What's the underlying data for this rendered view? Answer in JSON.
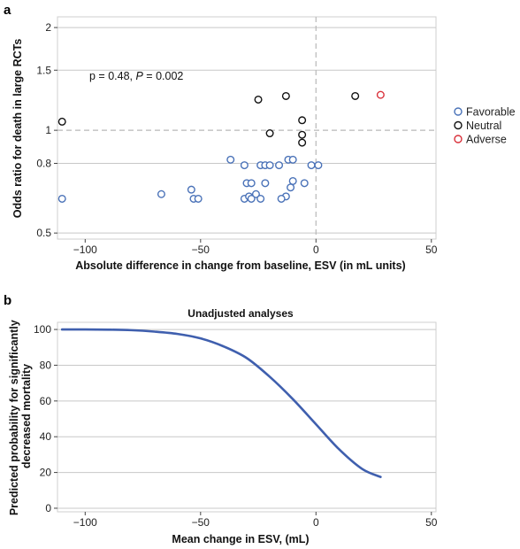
{
  "chart_data": [
    {
      "panel": "a",
      "type": "scatter",
      "xlabel": "Absolute difference in change from baseline, ESV (in mL units)",
      "ylabel": "Odds ratio for death in large RCTs",
      "y_scale": "log",
      "xlim": [
        -112,
        52
      ],
      "ylim": [
        0.48,
        2.15
      ],
      "x_ticks": [
        -100,
        -50,
        0,
        50
      ],
      "y_ticks": [
        0.5,
        0.8,
        1,
        1.5,
        2
      ],
      "y_tick_labels": [
        "0.5",
        "0.8",
        "1",
        "1.5",
        "2"
      ],
      "grid": "horizontal",
      "reference_lines": {
        "x": 0,
        "y": 1,
        "style": "dashed"
      },
      "annotation": {
        "prefix": "p = 0.48, ",
        "italic_symbol": "P",
        "suffix": " = 0.002"
      },
      "legend": {
        "placement": "right",
        "entries": [
          {
            "name": "Favorable",
            "color": "#4a72b8"
          },
          {
            "name": "Neutral",
            "color": "#111111"
          },
          {
            "name": "Adverse",
            "color": "#d9303a"
          }
        ]
      },
      "series": [
        {
          "name": "Favorable",
          "color": "#4a72b8",
          "points": [
            [
              -110,
              0.63
            ],
            [
              -67,
              0.65
            ],
            [
              -54,
              0.67
            ],
            [
              -53,
              0.63
            ],
            [
              -51,
              0.63
            ],
            [
              -37,
              0.82
            ],
            [
              -31,
              0.79
            ],
            [
              -30,
              0.7
            ],
            [
              -28,
              0.7
            ],
            [
              -31,
              0.63
            ],
            [
              -29,
              0.64
            ],
            [
              -26,
              0.65
            ],
            [
              -24,
              0.79
            ],
            [
              -22,
              0.79
            ],
            [
              -20,
              0.79
            ],
            [
              -22,
              0.7
            ],
            [
              -24,
              0.63
            ],
            [
              -28,
              0.63
            ],
            [
              -16,
              0.79
            ],
            [
              -12,
              0.82
            ],
            [
              -10,
              0.82
            ],
            [
              -10,
              0.71
            ],
            [
              -11,
              0.68
            ],
            [
              -13,
              0.64
            ],
            [
              -15,
              0.63
            ],
            [
              -5,
              0.7
            ],
            [
              -2,
              0.79
            ],
            [
              1,
              0.79
            ]
          ]
        },
        {
          "name": "Neutral",
          "color": "#111111",
          "points": [
            [
              -110,
              1.06
            ],
            [
              -25,
              1.23
            ],
            [
              -13,
              1.26
            ],
            [
              -20,
              0.98
            ],
            [
              -6,
              1.07
            ],
            [
              -6,
              0.97
            ],
            [
              -6,
              0.92
            ],
            [
              17,
              1.26
            ]
          ]
        },
        {
          "name": "Adverse",
          "color": "#d9303a",
          "points": [
            [
              28,
              1.27
            ]
          ]
        }
      ]
    },
    {
      "panel": "b",
      "type": "line",
      "title": "Unadjusted analyses",
      "xlabel": "Mean change in ESV, (mL)",
      "ylabel_lines": [
        "Predicted probability for significantly",
        "decreased mortality"
      ],
      "xlim": [
        -112,
        52
      ],
      "ylim": [
        -2,
        104
      ],
      "x_ticks": [
        -100,
        -50,
        0,
        50
      ],
      "y_ticks": [
        0,
        20,
        40,
        60,
        80,
        100
      ],
      "grid": "horizontal",
      "series": [
        {
          "name": "",
          "color": "#3f5fae",
          "x": [
            -110,
            -100,
            -90,
            -80,
            -70,
            -60,
            -50,
            -40,
            -30,
            -20,
            -10,
            0,
            10,
            20,
            28
          ],
          "y": [
            100,
            100,
            99.9,
            99.6,
            98.8,
            97.5,
            95,
            90.5,
            84,
            73.5,
            61,
            47,
            33,
            22,
            17.5
          ]
        }
      ]
    }
  ]
}
